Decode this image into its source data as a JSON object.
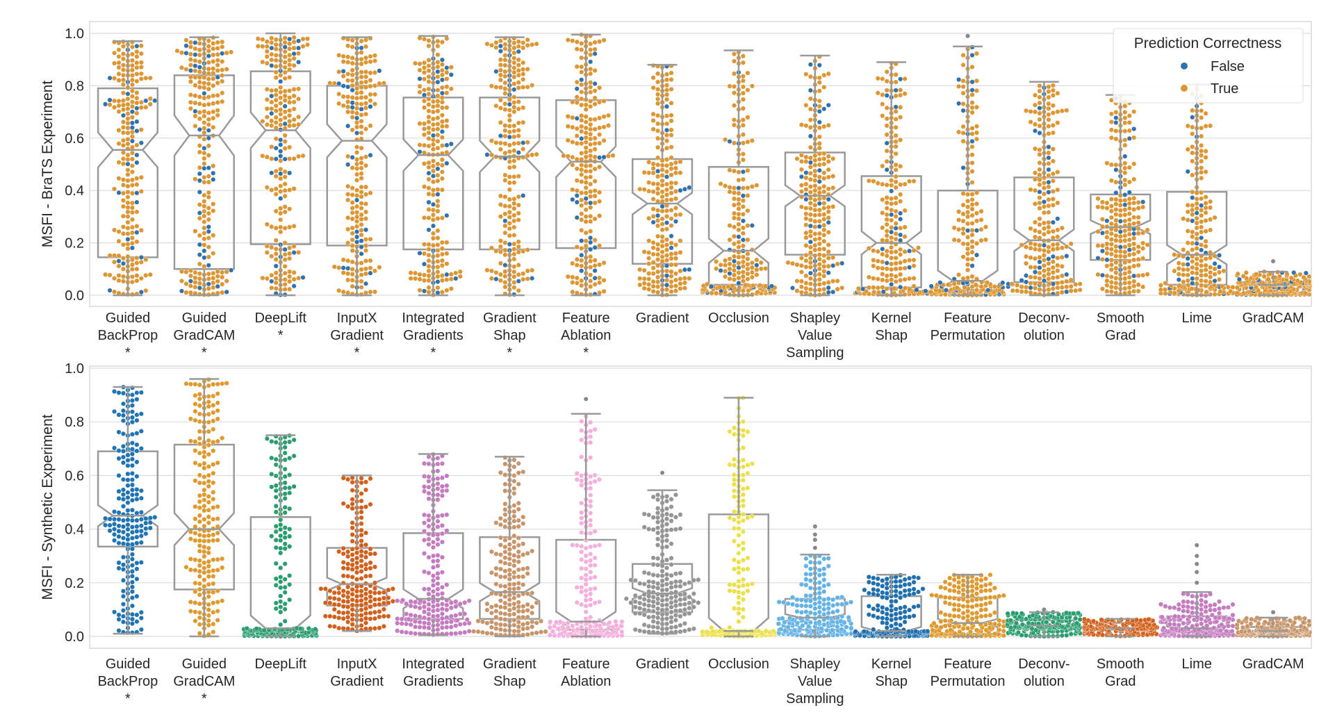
{
  "chart_data": [
    {
      "type": "box+swarm",
      "ylabel": "MSFI - BraTS Experiment",
      "ylim": [
        -0.043,
        1.045
      ],
      "yticks": [
        "0.0",
        "0.2",
        "0.4",
        "0.6",
        "0.8",
        "1.0"
      ],
      "grid": true,
      "legend": {
        "title": "Prediction Correctness",
        "placement": "top-right",
        "entries": [
          {
            "label": "False",
            "color": "#2f72b0"
          },
          {
            "label": "True",
            "color": "#dc9634"
          }
        ]
      },
      "box_color": "#999999",
      "categories": [
        {
          "label": [
            "Guided",
            "BackProp"
          ],
          "marker": "*",
          "q1": 0.145,
          "median": 0.555,
          "q3": 0.79,
          "whisker_low": 0.0,
          "whisker_high": 0.97,
          "outliers": []
        },
        {
          "label": [
            "Guided",
            "GradCAM"
          ],
          "marker": "*",
          "q1": 0.1,
          "median": 0.61,
          "q3": 0.84,
          "whisker_low": 0.0,
          "whisker_high": 0.985,
          "outliers": []
        },
        {
          "label": [
            "DeepLift"
          ],
          "marker": "*",
          "q1": 0.195,
          "median": 0.63,
          "q3": 0.855,
          "whisker_low": 0.0,
          "whisker_high": 1.0,
          "outliers": []
        },
        {
          "label": [
            "InputX",
            "Gradient"
          ],
          "marker": "*",
          "q1": 0.19,
          "median": 0.59,
          "q3": 0.8,
          "whisker_low": 0.0,
          "whisker_high": 0.985,
          "outliers": []
        },
        {
          "label": [
            "Integrated",
            "Gradients"
          ],
          "marker": "*",
          "q1": 0.175,
          "median": 0.535,
          "q3": 0.755,
          "whisker_low": 0.0,
          "whisker_high": 0.99,
          "outliers": []
        },
        {
          "label": [
            "Gradient",
            "Shap"
          ],
          "marker": "*",
          "q1": 0.175,
          "median": 0.53,
          "q3": 0.755,
          "whisker_low": 0.0,
          "whisker_high": 0.985,
          "outliers": []
        },
        {
          "label": [
            "Feature",
            "Ablation"
          ],
          "marker": "*",
          "q1": 0.18,
          "median": 0.51,
          "q3": 0.745,
          "whisker_low": 0.0,
          "whisker_high": 0.995,
          "outliers": []
        },
        {
          "label": [
            "Gradient"
          ],
          "marker": "",
          "q1": 0.12,
          "median": 0.35,
          "q3": 0.52,
          "whisker_low": 0.0,
          "whisker_high": 0.88,
          "outliers": []
        },
        {
          "label": [
            "Occlusion"
          ],
          "marker": "",
          "q1": 0.04,
          "median": 0.17,
          "q3": 0.49,
          "whisker_low": 0.0,
          "whisker_high": 0.935,
          "outliers": []
        },
        {
          "label": [
            "Shapley",
            "Value",
            "Sampling"
          ],
          "marker": "",
          "q1": 0.155,
          "median": 0.38,
          "q3": 0.545,
          "whisker_low": 0.0,
          "whisker_high": 0.915,
          "outliers": []
        },
        {
          "label": [
            "Kernel",
            "Shap"
          ],
          "marker": "",
          "q1": 0.03,
          "median": 0.2,
          "q3": 0.455,
          "whisker_low": 0.0,
          "whisker_high": 0.89,
          "outliers": []
        },
        {
          "label": [
            "Feature",
            "Permutation"
          ],
          "marker": "",
          "q1": 0.02,
          "median": 0.055,
          "q3": 0.4,
          "whisker_low": 0.0,
          "whisker_high": 0.95,
          "outliers": [
            0.99
          ]
        },
        {
          "label": [
            "Deconv-",
            "olution"
          ],
          "marker": "",
          "q1": 0.05,
          "median": 0.21,
          "q3": 0.45,
          "whisker_low": 0.0,
          "whisker_high": 0.815,
          "outliers": []
        },
        {
          "label": [
            "Smooth",
            "Grad"
          ],
          "marker": "",
          "q1": 0.135,
          "median": 0.26,
          "q3": 0.385,
          "whisker_low": 0.0,
          "whisker_high": 0.765,
          "outliers": []
        },
        {
          "label": [
            "Lime"
          ],
          "marker": "",
          "q1": 0.04,
          "median": 0.155,
          "q3": 0.395,
          "whisker_low": 0.0,
          "whisker_high": 0.805,
          "outliers": []
        },
        {
          "label": [
            "GradCAM"
          ],
          "marker": "",
          "q1": 0.01,
          "median": 0.04,
          "q3": 0.05,
          "whisker_low": 0.0,
          "whisker_high": 0.09,
          "outliers": [
            0.13
          ]
        }
      ]
    },
    {
      "type": "box+swarm",
      "ylabel": "MSFI - Synthetic Experiment",
      "ylim": [
        -0.045,
        1.0
      ],
      "yticks": [
        "0.0",
        "0.2",
        "0.4",
        "0.6",
        "0.8",
        "1.0"
      ],
      "grid": true,
      "box_color": "#999999",
      "categories": [
        {
          "label": [
            "Guided",
            "BackProp"
          ],
          "marker": "*",
          "color": "#1f74b4",
          "q1": 0.335,
          "median": 0.45,
          "q3": 0.69,
          "whisker_low": 0.01,
          "whisker_high": 0.93,
          "outliers": []
        },
        {
          "label": [
            "Guided",
            "GradCAM"
          ],
          "marker": "*",
          "color": "#de9a2e",
          "q1": 0.175,
          "median": 0.4,
          "q3": 0.715,
          "whisker_low": 0.0,
          "whisker_high": 0.96,
          "outliers": []
        },
        {
          "label": [
            "DeepLift"
          ],
          "marker": "",
          "color": "#2a9d6f",
          "q1": 0.015,
          "median": 0.03,
          "q3": 0.445,
          "whisker_low": 0.0,
          "whisker_high": 0.75,
          "outliers": []
        },
        {
          "label": [
            "InputX",
            "Gradient"
          ],
          "marker": "",
          "color": "#d2601a",
          "q1": 0.115,
          "median": 0.195,
          "q3": 0.33,
          "whisker_low": 0.02,
          "whisker_high": 0.6,
          "outliers": []
        },
        {
          "label": [
            "Integrated",
            "Gradients"
          ],
          "marker": "",
          "color": "#c57bc0",
          "q1": 0.065,
          "median": 0.14,
          "q3": 0.385,
          "whisker_low": 0.005,
          "whisker_high": 0.68,
          "outliers": []
        },
        {
          "label": [
            "Gradient",
            "Shap"
          ],
          "marker": "",
          "color": "#c8956a",
          "q1": 0.065,
          "median": 0.165,
          "q3": 0.37,
          "whisker_low": 0.0,
          "whisker_high": 0.67,
          "outliers": []
        },
        {
          "label": [
            "Feature",
            "Ablation"
          ],
          "marker": "",
          "color": "#f4afdc",
          "q1": 0.025,
          "median": 0.055,
          "q3": 0.36,
          "whisker_low": 0.0,
          "whisker_high": 0.83,
          "outliers": [
            0.885
          ]
        },
        {
          "label": [
            "Gradient"
          ],
          "marker": "",
          "color": "#959595",
          "q1": 0.09,
          "median": 0.16,
          "q3": 0.27,
          "whisker_low": 0.01,
          "whisker_high": 0.545,
          "outliers": [
            0.61
          ]
        },
        {
          "label": [
            "Occlusion"
          ],
          "marker": "",
          "color": "#ebe04a",
          "q1": 0.015,
          "median": 0.02,
          "q3": 0.455,
          "whisker_low": 0.0,
          "whisker_high": 0.89,
          "outliers": []
        },
        {
          "label": [
            "Shapley",
            "Value",
            "Sampling"
          ],
          "marker": "",
          "color": "#63b3e6",
          "q1": 0.025,
          "median": 0.07,
          "q3": 0.14,
          "whisker_low": 0.0,
          "whisker_high": 0.305,
          "outliers": [
            0.33,
            0.36,
            0.38,
            0.41
          ]
        },
        {
          "label": [
            "Kernel",
            "Shap"
          ],
          "marker": "",
          "color": "#1f6fae",
          "q1": 0.01,
          "median": 0.02,
          "q3": 0.15,
          "whisker_low": 0.0,
          "whisker_high": 0.23,
          "outliers": []
        },
        {
          "label": [
            "Feature",
            "Permutation"
          ],
          "marker": "",
          "color": "#de9a2e",
          "q1": 0.01,
          "median": 0.05,
          "q3": 0.145,
          "whisker_low": 0.0,
          "whisker_high": 0.23,
          "outliers": []
        },
        {
          "label": [
            "Deconv-",
            "olution"
          ],
          "marker": "",
          "color": "#2a9d6f",
          "q1": 0.03,
          "median": 0.04,
          "q3": 0.06,
          "whisker_low": 0.0,
          "whisker_high": 0.09,
          "outliers": [
            0.1
          ]
        },
        {
          "label": [
            "Smooth",
            "Grad"
          ],
          "marker": "",
          "color": "#d2601a",
          "q1": 0.025,
          "median": 0.03,
          "q3": 0.05,
          "whisker_low": 0.0,
          "whisker_high": 0.065,
          "outliers": []
        },
        {
          "label": [
            "Lime"
          ],
          "marker": "",
          "color": "#c57bc0",
          "q1": 0.015,
          "median": 0.03,
          "q3": 0.075,
          "whisker_low": 0.0,
          "whisker_high": 0.165,
          "outliers": [
            0.2,
            0.24,
            0.27,
            0.3,
            0.34
          ]
        },
        {
          "label": [
            "GradCAM"
          ],
          "marker": "",
          "color": "#c8956a",
          "q1": 0.01,
          "median": 0.02,
          "q3": 0.035,
          "whisker_low": 0.0,
          "whisker_high": 0.07,
          "outliers": [
            0.09
          ]
        }
      ]
    }
  ]
}
